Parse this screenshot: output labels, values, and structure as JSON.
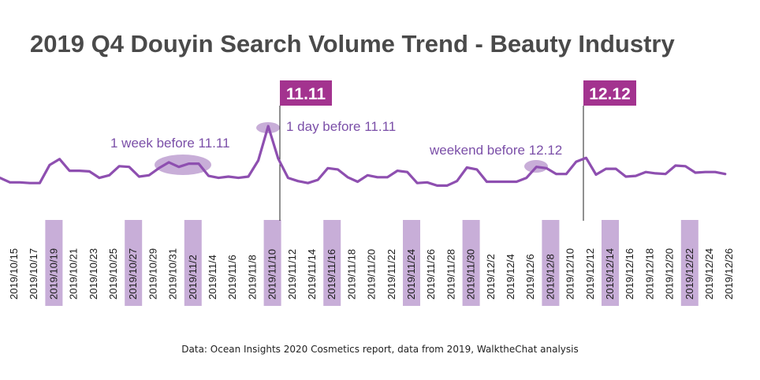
{
  "chart_data": {
    "type": "line",
    "title": "2019 Q4 Douyin Search Volume Trend - Beauty Industry",
    "xlabel": "",
    "ylabel": "",
    "grid": false,
    "legend": "none",
    "ylim": [
      0,
      100
    ],
    "x_tick_labels": [
      "2019/10/15",
      "2019/10/17",
      "2019/10/19",
      "2019/10/21",
      "2019/10/23",
      "2019/10/25",
      "2019/10/27",
      "2019/10/29",
      "2019/10/31",
      "2019/11/2",
      "2019/11/4",
      "2019/11/6",
      "2019/11/8",
      "2019/11/10",
      "2019/11/12",
      "2019/11/14",
      "2019/11/16",
      "2019/11/18",
      "2019/11/20",
      "2019/11/22",
      "2019/11/24",
      "2019/11/26",
      "2019/11/28",
      "2019/11/30",
      "2019/12/2",
      "2019/12/4",
      "2019/12/6",
      "2019/12/8",
      "2019/12/10",
      "2019/12/12",
      "2019/12/14",
      "2019/12/16",
      "2019/12/18",
      "2019/12/20",
      "2019/12/22",
      "2019/12/24",
      "2019/12/26"
    ],
    "weekend_ticks": [
      "2019/10/19",
      "2019/10/27",
      "2019/11/2",
      "2019/11/10",
      "2019/11/16",
      "2019/11/24",
      "2019/11/30",
      "2019/12/8",
      "2019/12/14",
      "2019/12/22"
    ],
    "series": [
      {
        "values": [
          20,
          13,
          13,
          12,
          12,
          40,
          49,
          31,
          31,
          30,
          20,
          24,
          38,
          37,
          22,
          24,
          35,
          44,
          37,
          42,
          42,
          23,
          20,
          22,
          20,
          22,
          47,
          100,
          50,
          20,
          15,
          12,
          17,
          35,
          33,
          21,
          14,
          24,
          21,
          21,
          31,
          29,
          12,
          13,
          8,
          8,
          15,
          36,
          33,
          14,
          14,
          14,
          14,
          20,
          37,
          35,
          26,
          26,
          45,
          51,
          25,
          34,
          34,
          22,
          23,
          29,
          27,
          26,
          39,
          38,
          28,
          29,
          29,
          26
        ],
        "color": "#8e4fb0"
      }
    ],
    "annotations": [
      {
        "text": "1 week before 11.11"
      },
      {
        "text": "1 day before 11.11"
      },
      {
        "text": "weekend before 12.12"
      }
    ],
    "events": [
      {
        "label": "11.11"
      },
      {
        "label": "12.12"
      }
    ]
  },
  "source_note": "Data: Ocean Insights 2020 Cosmetics report, data from 2019,  WalktheChat analysis",
  "colors": {
    "line": "#8e4fb0",
    "highlight": "#c8aed8",
    "event_box": "#a3338f",
    "title": "#4a4a4a",
    "annotation": "#7b4fa8"
  }
}
